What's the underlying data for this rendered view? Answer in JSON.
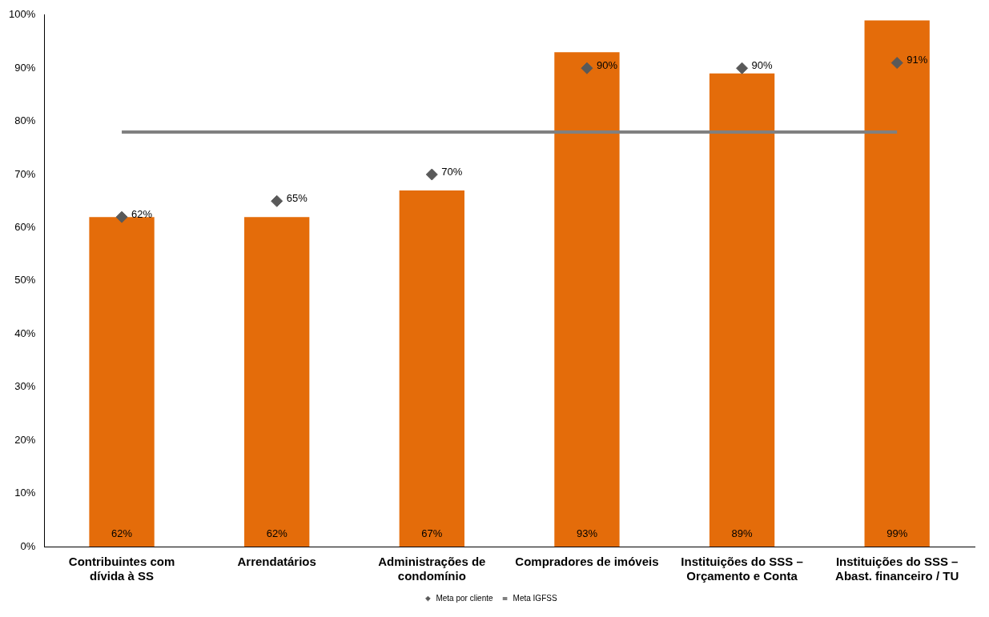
{
  "chart_data": {
    "type": "bar",
    "categories": [
      "Contribuintes com dívida à SS",
      "Arrendatários",
      "Administrações de condomínio",
      "Compradores de imóveis",
      "Instituições do SSS – Orçamento e Conta",
      "Instituições do SSS – Abast. financeiro / TU"
    ],
    "series": [
      {
        "color": "#e46c0a",
        "values": [
          62,
          62,
          67,
          93,
          89,
          99
        ],
        "value_labels": [
          "62%",
          "62%",
          "67%",
          "93%",
          "89%",
          "99%"
        ]
      },
      {
        "type": "scatter",
        "name": "Meta por cliente",
        "color": "#595959",
        "marker": "diamond",
        "values": [
          62,
          65,
          70,
          90,
          90,
          91
        ],
        "value_labels": [
          "62%",
          "65%",
          "70%",
          "90%",
          "90%",
          "91%"
        ]
      },
      {
        "type": "line",
        "name": "Meta IGFSS",
        "color": "#808080",
        "marker": "none",
        "values": [
          78,
          78,
          78,
          78,
          78,
          78
        ]
      }
    ],
    "ylim": [
      0,
      100
    ],
    "yticks": [
      {
        "value": 0,
        "label": "0%"
      },
      {
        "value": 10,
        "label": "10%"
      },
      {
        "value": 20,
        "label": "20%"
      },
      {
        "value": 30,
        "label": "30%"
      },
      {
        "value": 40,
        "label": "40%"
      },
      {
        "value": 50,
        "label": "50%"
      },
      {
        "value": 60,
        "label": "60%"
      },
      {
        "value": 70,
        "label": "70%"
      },
      {
        "value": 80,
        "label": "80%"
      },
      {
        "value": 90,
        "label": "90%"
      },
      {
        "value": 100,
        "label": "100%"
      }
    ],
    "grid": false,
    "legend": "bottom"
  }
}
